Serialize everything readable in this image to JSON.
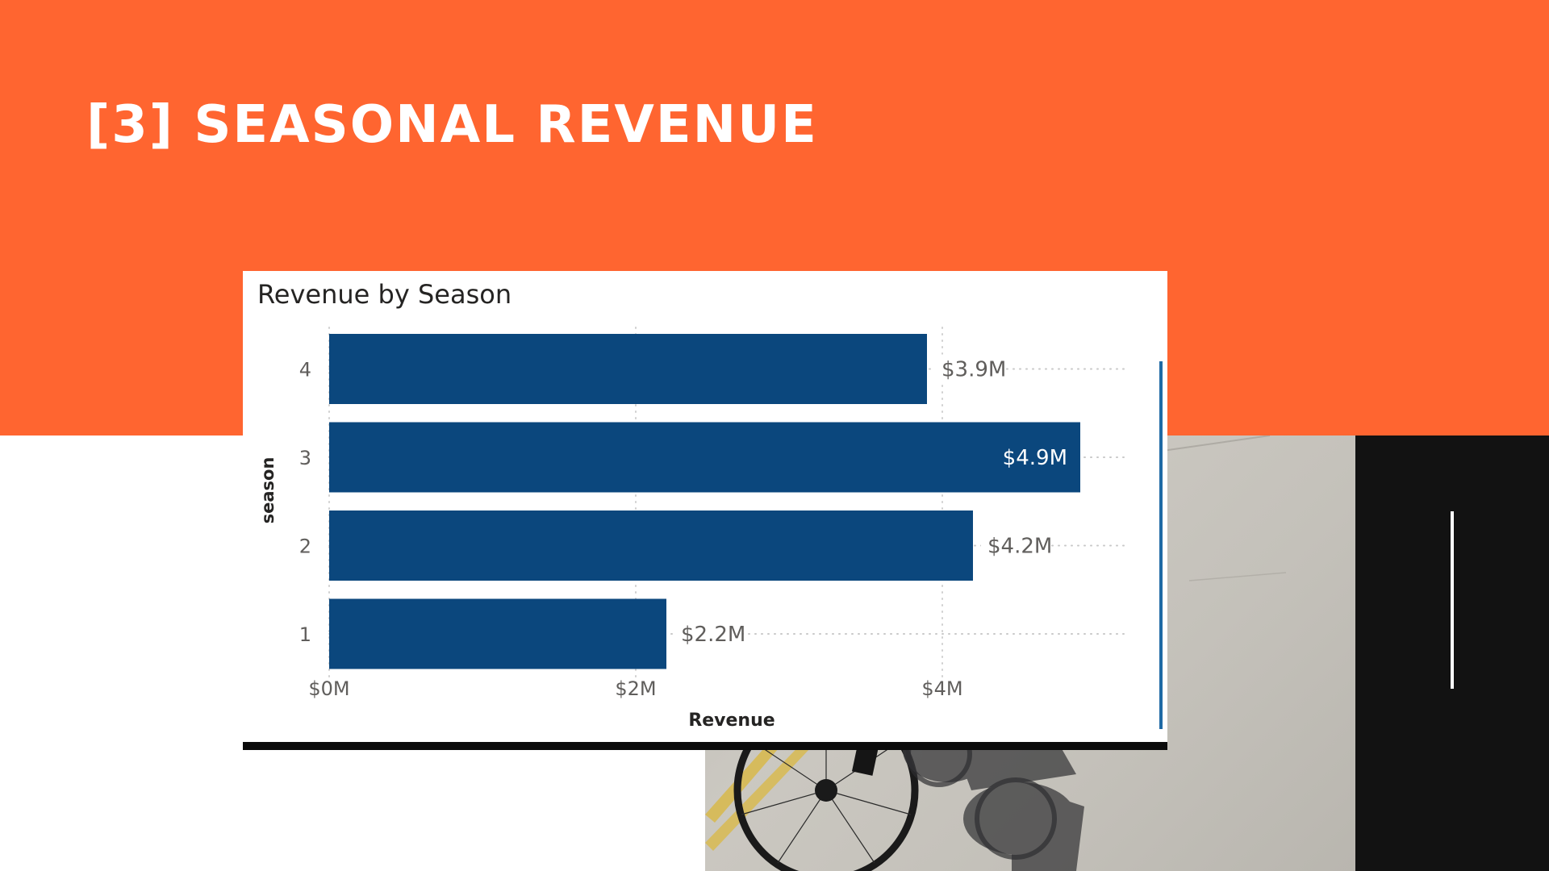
{
  "slide": {
    "title": "[3] SEASONAL REVENUE"
  },
  "colors": {
    "band": "#FF6530",
    "bar": "#0B477D",
    "panel": "#121212",
    "text": "#252423",
    "label": "#605E5C"
  },
  "chart_data": {
    "type": "bar",
    "orientation": "horizontal",
    "title": "Revenue by Season",
    "xlabel": "Revenue",
    "ylabel": "season",
    "categories": [
      "4",
      "3",
      "2",
      "1"
    ],
    "values": [
      3.9,
      4.9,
      4.2,
      2.2
    ],
    "data_labels": [
      "$3.9M",
      "$4.9M",
      "$4.2M",
      "$2.2M"
    ],
    "x_ticks": [
      0,
      2,
      4
    ],
    "x_tick_labels": [
      "$0M",
      "$2M",
      "$4M"
    ],
    "xlim": [
      0,
      5.2
    ],
    "grid": true,
    "legend": "none"
  }
}
